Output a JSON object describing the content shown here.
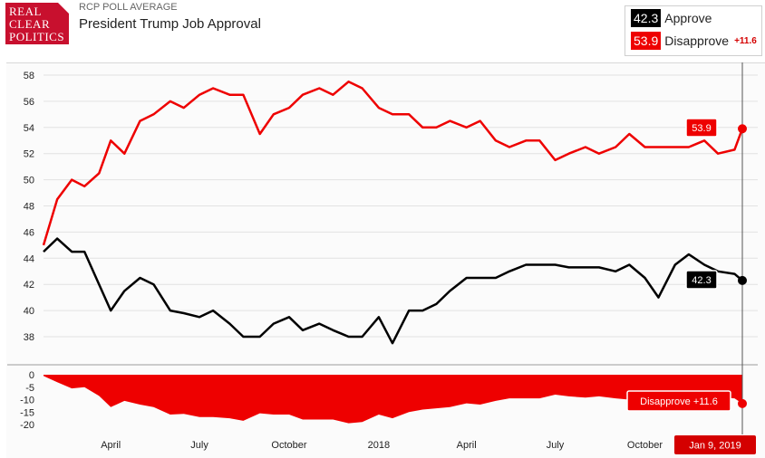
{
  "header": {
    "logo": [
      "REAL",
      "CLEAR",
      "POLITICS"
    ],
    "kicker": "RCP POLL AVERAGE",
    "title": "President Trump Job Approval"
  },
  "legend": {
    "approve": {
      "value": "42.3",
      "label": "Approve",
      "color": "#000000"
    },
    "disapprove": {
      "value": "53.9",
      "label": "Disapprove",
      "color": "#ee0000",
      "spread": "+11.6"
    }
  },
  "flags": {
    "disapprove_value": "53.9",
    "approve_value": "42.3",
    "spread_label": "Disapprove +11.6",
    "date_label": "Jan 9, 2019"
  },
  "chart_data": [
    {
      "type": "line",
      "title": "President Trump Job Approval",
      "ylim": [
        36,
        59
      ],
      "yticks": [
        38,
        40,
        42,
        44,
        46,
        48,
        50,
        52,
        54,
        56,
        58
      ],
      "xlabel": "",
      "ylabel": "",
      "grid": true,
      "x_tick_labels": [
        "April",
        "July",
        "October",
        "2018",
        "April",
        "July",
        "October"
      ],
      "x": [
        "2017-01-22",
        "2017-02-05",
        "2017-02-20",
        "2017-03-05",
        "2017-03-20",
        "2017-04-01",
        "2017-04-15",
        "2017-05-01",
        "2017-05-15",
        "2017-06-01",
        "2017-06-15",
        "2017-07-01",
        "2017-07-15",
        "2017-08-01",
        "2017-08-15",
        "2017-09-01",
        "2017-09-15",
        "2017-10-01",
        "2017-10-15",
        "2017-11-01",
        "2017-11-15",
        "2017-12-01",
        "2017-12-15",
        "2018-01-01",
        "2018-01-15",
        "2018-02-01",
        "2018-02-15",
        "2018-03-01",
        "2018-03-15",
        "2018-04-01",
        "2018-04-15",
        "2018-05-01",
        "2018-05-15",
        "2018-06-01",
        "2018-06-15",
        "2018-07-01",
        "2018-07-15",
        "2018-08-01",
        "2018-08-15",
        "2018-09-01",
        "2018-09-15",
        "2018-10-01",
        "2018-10-15",
        "2018-11-01",
        "2018-11-15",
        "2018-12-01",
        "2018-12-15",
        "2019-01-01",
        "2019-01-09"
      ],
      "series": [
        {
          "name": "Approve",
          "color": "#000000",
          "values": [
            44.5,
            45.5,
            44.5,
            44.5,
            42.0,
            40.0,
            41.5,
            42.5,
            42.0,
            40.0,
            39.8,
            39.5,
            40.0,
            39.0,
            38.0,
            38.0,
            39.0,
            39.5,
            38.5,
            39.0,
            38.5,
            38.0,
            38.0,
            39.5,
            37.5,
            40.0,
            40.0,
            40.5,
            41.5,
            42.5,
            42.5,
            42.5,
            43.0,
            43.5,
            43.5,
            43.5,
            43.3,
            43.3,
            43.3,
            43.0,
            43.5,
            42.5,
            41.0,
            43.5,
            44.3,
            43.5,
            43.0,
            42.8,
            42.3
          ]
        },
        {
          "name": "Disapprove",
          "color": "#ee0000",
          "values": [
            45.0,
            48.5,
            50.0,
            49.5,
            50.5,
            53.0,
            52.0,
            54.5,
            55.0,
            56.0,
            55.5,
            56.5,
            57.0,
            56.5,
            56.5,
            53.5,
            55.0,
            55.5,
            56.5,
            57.0,
            56.5,
            57.5,
            57.0,
            55.5,
            55.0,
            55.0,
            54.0,
            54.0,
            54.5,
            54.0,
            54.5,
            53.0,
            52.5,
            53.0,
            53.0,
            51.5,
            52.0,
            52.5,
            52.0,
            52.5,
            53.5,
            52.5,
            52.5,
            52.5,
            52.5,
            53.0,
            52.0,
            52.3,
            53.9
          ]
        }
      ]
    },
    {
      "type": "area",
      "ylim": [
        -20,
        0
      ],
      "yticks": [
        0,
        -5,
        -10,
        -15,
        -20
      ],
      "grid": false,
      "series": [
        {
          "name": "Disapprove",
          "color": "#ee0000",
          "values": [
            -0.5,
            -3.0,
            -5.5,
            -5.0,
            -8.5,
            -13.0,
            -10.5,
            -12.0,
            -13.0,
            -16.0,
            -15.7,
            -17.0,
            -17.0,
            -17.5,
            -18.5,
            -15.5,
            -16.0,
            -16.0,
            -18.0,
            -18.0,
            -18.0,
            -19.5,
            -19.0,
            -16.0,
            -17.5,
            -15.0,
            -14.0,
            -13.5,
            -13.0,
            -11.5,
            -12.0,
            -10.5,
            -9.5,
            -9.5,
            -9.5,
            -8.0,
            -8.7,
            -9.2,
            -8.7,
            -9.5,
            -10.0,
            -10.0,
            -11.5,
            -9.0,
            -8.2,
            -9.5,
            -9.0,
            -9.5,
            -11.6
          ]
        }
      ]
    }
  ]
}
